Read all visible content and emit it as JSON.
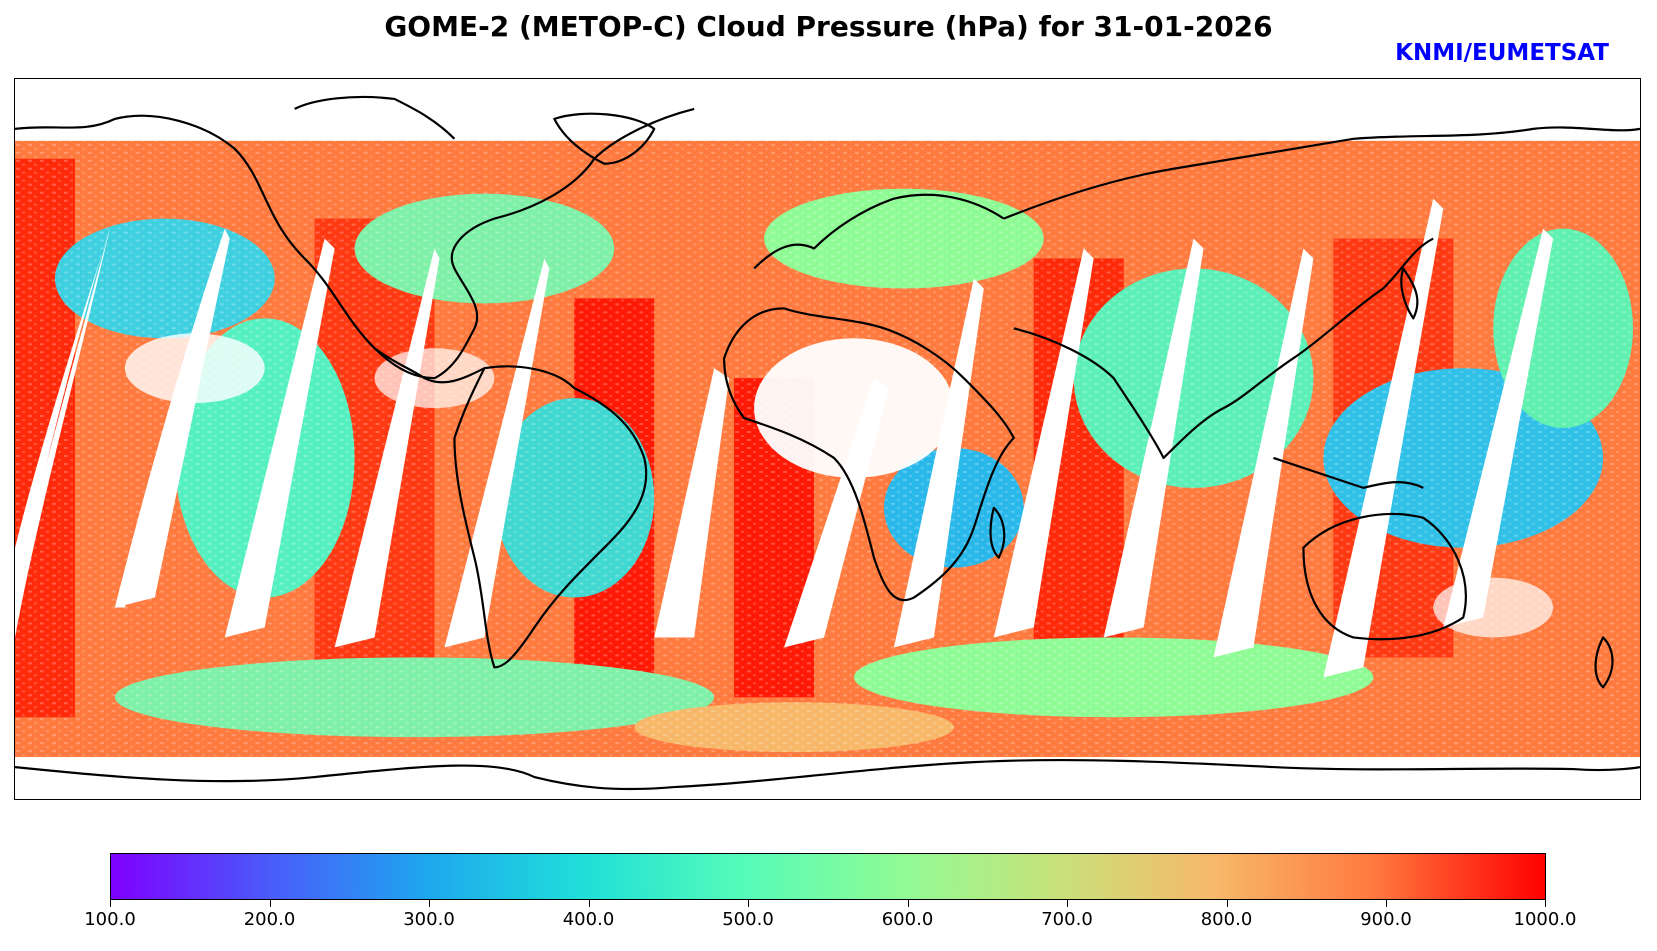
{
  "title": "GOME-2 (METOP-C) Cloud Pressure (hPa) for 31-01-2026",
  "credit": "KNMI/EUMETSAT",
  "colorbar": {
    "min": 100.0,
    "max": 1000.0,
    "ticks": [
      "100.0",
      "200.0",
      "300.0",
      "400.0",
      "500.0",
      "600.0",
      "700.0",
      "800.0",
      "900.0",
      "1000.0"
    ]
  },
  "colors": {
    "title": "#000000",
    "credit": "#0000ff",
    "coastline": "#000000",
    "low_pressure": "#7f00ff",
    "high_pressure": "#ff0000"
  }
}
